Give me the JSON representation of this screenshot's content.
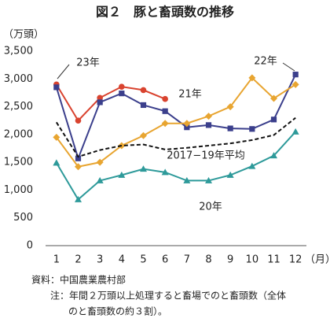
{
  "chart_data": {
    "type": "line",
    "title": "図２　豚と畜頭数の推移",
    "y_unit": "（万頭）",
    "x_unit": "（月）",
    "categories": [
      "1",
      "2",
      "3",
      "4",
      "5",
      "6",
      "7",
      "8",
      "9",
      "10",
      "11",
      "12"
    ],
    "ylim": [
      0,
      3500
    ],
    "yticks": [
      0,
      500,
      {
        "value": 1000,
        "label": "1,000"
      },
      {
        "value": 1500,
        "label": "1,500"
      },
      {
        "value": 2000,
        "label": "2,000"
      },
      {
        "value": 2500,
        "label": "2,500"
      },
      {
        "value": 3000,
        "label": "3,000"
      },
      {
        "value": 3500,
        "label": "3,500"
      }
    ],
    "grid": false,
    "series": [
      {
        "name": "23年",
        "color": "#d9432f",
        "marker": "circle",
        "values": [
          2900,
          2250,
          2660,
          2860,
          2800,
          2640,
          null,
          null,
          null,
          null,
          null,
          null
        ]
      },
      {
        "name": "22年",
        "color": "#3b3f8c",
        "marker": "square",
        "values": [
          2850,
          1570,
          2580,
          2740,
          2530,
          2420,
          2130,
          2170,
          2110,
          2100,
          2270,
          3080
        ]
      },
      {
        "name": "21年",
        "color": "#e8a531",
        "marker": "diamond",
        "values": [
          1950,
          1420,
          1500,
          1800,
          1980,
          2200,
          2200,
          2330,
          2500,
          3020,
          2650,
          2900
        ]
      },
      {
        "name": "2017−19年平均",
        "color": "#111111",
        "marker": "none",
        "dash": true,
        "values": [
          2220,
          1600,
          1720,
          1800,
          1820,
          1730,
          1760,
          1800,
          1840,
          1900,
          1990,
          2300
        ]
      },
      {
        "name": "20年",
        "color": "#2e9a9a",
        "marker": "triangle",
        "values": [
          1490,
          830,
          1170,
          1270,
          1380,
          1320,
          1170,
          1170,
          1270,
          1430,
          1620,
          2050
        ]
      }
    ],
    "notes": [
      "資料：中国農業農村部",
      "注：年間２万頭以上処理すると畜場でのと畜頭数（全体",
      "のと畜頭数の約３割）。"
    ]
  }
}
